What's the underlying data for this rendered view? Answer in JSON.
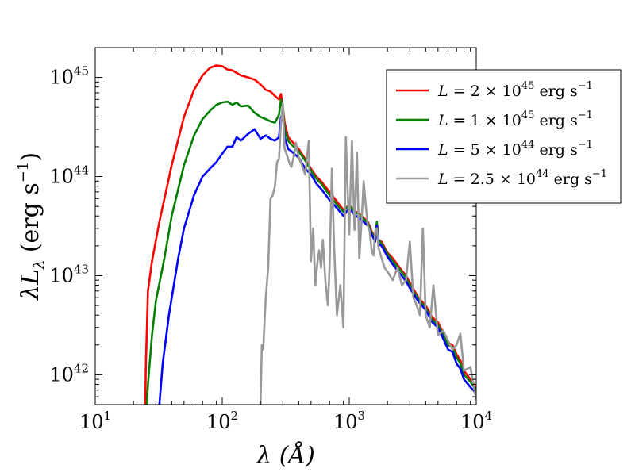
{
  "chart_data": {
    "type": "line",
    "title": "",
    "xlabel": "λ (Å)",
    "ylabel": "λLλ (erg s⁻¹)",
    "xscale": "log",
    "yscale": "log",
    "xlim": [
      10,
      10000
    ],
    "ylim": [
      5e+41,
      2e+45
    ],
    "legend_position": "upper-right",
    "xticks": [
      {
        "base": "10",
        "exp": "1",
        "value": 10
      },
      {
        "base": "10",
        "exp": "2",
        "value": 100
      },
      {
        "base": "10",
        "exp": "3",
        "value": 1000
      },
      {
        "base": "10",
        "exp": "4",
        "value": 10000
      }
    ],
    "yticks": [
      {
        "base": "10",
        "exp": "42",
        "value": 1e+42
      },
      {
        "base": "10",
        "exp": "43",
        "value": 1e+43
      },
      {
        "base": "10",
        "exp": "44",
        "value": 1e+44
      },
      {
        "base": "10",
        "exp": "45",
        "value": 1e+45
      }
    ],
    "series": [
      {
        "name": "L = 2 × 10^45 erg s^-1",
        "legend": {
          "lhs": "L",
          "coef": "2",
          "exp": "45",
          "unit": "erg s",
          "unit_exp": "−1"
        },
        "color": "#ff0000",
        "x": [
          24.8,
          25,
          26,
          28,
          32,
          40,
          50,
          60,
          70,
          80,
          90,
          100,
          110,
          120,
          140,
          160,
          180,
          200,
          220,
          240,
          260,
          280,
          290,
          300,
          310,
          330,
          350,
          400,
          450,
          500,
          550,
          600,
          700,
          800,
          900,
          1000,
          1100,
          1200,
          1400,
          1500,
          1600,
          1650,
          1700,
          1800,
          2000,
          2200,
          2500,
          2800,
          3000,
          3500,
          4000,
          4500,
          5000,
          5500,
          6000,
          6500,
          7000,
          7500,
          8000,
          9000,
          10000
        ],
        "y": [
          5e+41,
          1.2e+42,
          7e+42,
          1.4e+43,
          3.5e+43,
          1.3e+44,
          4e+44,
          7.5e+44,
          1.05e+45,
          1.25e+45,
          1.32e+45,
          1.3e+45,
          1.2e+45,
          1.18e+45,
          1.05e+45,
          1e+45,
          9.5e+44,
          8.5e+44,
          7.5e+44,
          7.2e+44,
          6.5e+44,
          6e+44,
          6.8e+44,
          5e+44,
          3.5e+44,
          2.5e+44,
          2.3e+44,
          1.9e+44,
          1.5e+44,
          1.2e+44,
          1e+44,
          9e+43,
          7e+43,
          5.6e+43,
          4.6e+43,
          5.2e+43,
          4.5e+43,
          4.2e+43,
          3.5e+43,
          2.8e+43,
          2.4e+43,
          3.4e+43,
          2.3e+43,
          2.2e+43,
          1.7e+43,
          1.5e+43,
          1.2e+43,
          1e+43,
          8.5e+42,
          6e+42,
          5e+42,
          3.8e+42,
          3.4e+42,
          2.6e+42,
          2.1e+42,
          2e+42,
          1.6e+42,
          1.4e+42,
          1.1e+42,
          9e+41,
          7.5e+41
        ]
      },
      {
        "name": "L = 1 × 10^45 erg s^-1",
        "legend": {
          "lhs": "L",
          "coef": "1",
          "exp": "45",
          "unit": "erg s",
          "unit_exp": "−1"
        },
        "color": "#007f00",
        "x": [
          25.5,
          26,
          28,
          30,
          35,
          40,
          50,
          60,
          70,
          80,
          90,
          100,
          110,
          120,
          130,
          140,
          160,
          180,
          200,
          220,
          240,
          260,
          280,
          290,
          300,
          310,
          330,
          350,
          400,
          450,
          500,
          550,
          600,
          700,
          800,
          900,
          1000,
          1100,
          1200,
          1400,
          1500,
          1600,
          1650,
          1700,
          1800,
          2000,
          2200,
          2500,
          2800,
          3000,
          3500,
          4000,
          4500,
          5000,
          5500,
          6000,
          6500,
          7000,
          7500,
          8000,
          9000,
          10000
        ],
        "y": [
          5e+41,
          8e+41,
          2.5e+42,
          5.5e+42,
          1.5e+43,
          4e+43,
          1.3e+44,
          2.6e+44,
          3.8e+44,
          4.6e+44,
          5.3e+44,
          5.6e+44,
          5.7e+44,
          5.3e+44,
          5.6e+44,
          5.1e+44,
          5.2e+44,
          4.4e+44,
          4e+44,
          3.8e+44,
          3.6e+44,
          3.5e+44,
          4.2e+44,
          6e+44,
          4.8e+44,
          3e+44,
          2.3e+44,
          2.1e+44,
          1.8e+44,
          1.45e+44,
          1.15e+44,
          9.5e+43,
          8.5e+43,
          6.5e+43,
          5.2e+43,
          4.4e+43,
          5.2e+43,
          4.4e+43,
          4.1e+43,
          3.4e+43,
          2.7e+43,
          2.3e+43,
          3.5e+43,
          2.3e+43,
          2.1e+43,
          1.65e+43,
          1.4e+43,
          1.15e+43,
          9.5e+42,
          8e+42,
          5.8e+42,
          4.7e+42,
          3.6e+42,
          3.2e+42,
          2.5e+42,
          2e+42,
          1.9e+42,
          1.5e+42,
          1.3e+42,
          1e+42,
          8.5e+41,
          7e+41
        ]
      },
      {
        "name": "L = 5 × 10^44 erg s^-1",
        "legend": {
          "lhs": "L",
          "coef": "5",
          "exp": "44",
          "unit": "erg s",
          "unit_exp": "−1"
        },
        "color": "#0000ff",
        "x": [
          32,
          34,
          38,
          45,
          50,
          60,
          70,
          80,
          90,
          100,
          110,
          120,
          130,
          140,
          160,
          180,
          200,
          220,
          240,
          260,
          280,
          290,
          300,
          310,
          330,
          350,
          400,
          450,
          500,
          550,
          600,
          700,
          800,
          900,
          1000,
          1100,
          1200,
          1400,
          1500,
          1600,
          1650,
          1700,
          1800,
          2000,
          2200,
          2500,
          2800,
          3000,
          3500,
          4000,
          4500,
          5000,
          5500,
          6000,
          6500,
          7000,
          7500,
          8000,
          9000,
          10000
        ],
        "y": [
          5e+41,
          1.3e+42,
          4e+42,
          1.5e+43,
          3e+43,
          6.5e+43,
          1e+44,
          1.2e+44,
          1.4e+44,
          1.7e+44,
          2e+44,
          2e+44,
          2.5e+44,
          2.3e+44,
          2.7e+44,
          3e+44,
          2.4e+44,
          2.6e+44,
          2.4e+44,
          2.3e+44,
          2.5e+44,
          4e+44,
          4.3e+44,
          2.5e+44,
          1.9e+44,
          1.8e+44,
          1.55e+44,
          1.2e+44,
          1.05e+44,
          8.5e+43,
          7.5e+43,
          5.8e+43,
          4.8e+43,
          4e+43,
          4.8e+43,
          4.1e+43,
          3.8e+43,
          3.2e+43,
          2.6e+43,
          2.2e+43,
          3.2e+43,
          2.1e+43,
          2e+43,
          1.55e+43,
          1.3e+43,
          1.05e+43,
          8.8e+42,
          7.5e+42,
          5.5e+42,
          4.5e+42,
          3.4e+42,
          3e+42,
          2.3e+42,
          1.8e+42,
          1.7e+42,
          1.3e+42,
          1.15e+42,
          9e+41,
          7.5e+41,
          6.5e+41
        ]
      },
      {
        "name": "L = 2.5 × 10^44 erg s^-1",
        "legend": {
          "lhs": "L",
          "coef": "2.5",
          "exp": "44",
          "unit": "erg s",
          "unit_exp": "−1"
        },
        "color": "#999999",
        "x": [
          200,
          205,
          210,
          220,
          230,
          240,
          250,
          260,
          270,
          280,
          290,
          300,
          310,
          320,
          330,
          340,
          350,
          370,
          380,
          400,
          420,
          450,
          480,
          500,
          520,
          540,
          560,
          580,
          600,
          620,
          650,
          680,
          700,
          730,
          760,
          800,
          850,
          900,
          940,
          1000,
          1050,
          1100,
          1150,
          1200,
          1250,
          1300,
          1350,
          1400,
          1450,
          1500,
          1550,
          1600,
          1650,
          1700,
          1800,
          1900,
          2000,
          2200,
          2400,
          2600,
          2800,
          3000,
          3200,
          3400,
          3600,
          3800,
          4000,
          4300,
          4600,
          5000,
          5500,
          6000,
          6500,
          7000,
          7500,
          8000,
          9000,
          10000
        ],
        "y": [
          5e+41,
          2e+42,
          1.8e+42,
          6e+42,
          1.2e+43,
          6e+43,
          6.5e+43,
          8e+43,
          1.4e+44,
          1.5e+44,
          3.5e+44,
          5.5e+44,
          1.9e+44,
          1.7e+44,
          1.5e+44,
          1.35e+44,
          1.25e+44,
          1.7e+44,
          2.2e+44,
          1.55e+44,
          1.35e+44,
          1.05e+44,
          2.3e+44,
          1.4e+43,
          3e+43,
          8e+42,
          1.3e+43,
          1.8e+43,
          1.2e+43,
          2.3e+43,
          8.5e+42,
          5e+42,
          1.2e+43,
          1.2e+44,
          2e+43,
          4e+42,
          8e+42,
          3e+42,
          2.5e+44,
          2.6e+43,
          2.3e+44,
          2.9e+43,
          1.75e+44,
          1.5e+43,
          3.5e+43,
          9e+43,
          5e+43,
          3.2e+43,
          2.8e+43,
          1.8e+43,
          1.6e+43,
          2.8e+43,
          3e+43,
          1.9e+43,
          1.5e+43,
          1.2e+43,
          1.1e+43,
          9e+42,
          1.2e+43,
          8e+42,
          9e+42,
          2.2e+43,
          6e+42,
          5e+42,
          4e+42,
          3e+43,
          4e+42,
          3e+42,
          8e+42,
          2.5e+42,
          2.8e+42,
          2.2e+42,
          1.8e+42,
          2e+42,
          2.6e+42,
          1.1e+42,
          1.2e+42,
          5.5e+41
        ]
      }
    ]
  }
}
